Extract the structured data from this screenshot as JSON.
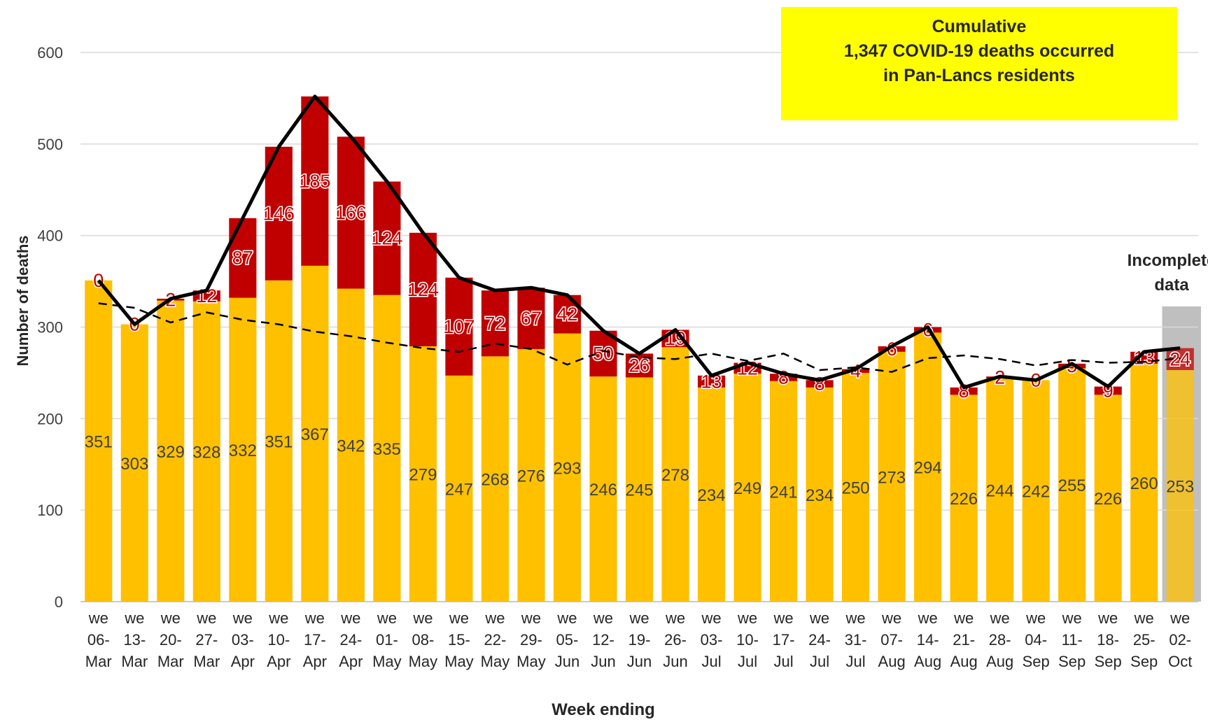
{
  "chart_data": {
    "type": "stacked-bar",
    "ylabel": "Number of deaths",
    "xlabel": "Week ending",
    "categories": [
      "we 06-Mar",
      "we 13-Mar",
      "we 20-Mar",
      "we 27-Mar",
      "we 03-Apr",
      "we 10-Apr",
      "we 17-Apr",
      "we 24-Apr",
      "we 01-May",
      "we 08-May",
      "we 15-May",
      "we 22-May",
      "we 29-May",
      "we 05-Jun",
      "we 12-Jun",
      "we 19-Jun",
      "we 26-Jun",
      "we 03-Jul",
      "we 10-Jul",
      "we 17-Jul",
      "we 24-Jul",
      "we 31-Jul",
      "we 07-Aug",
      "we 14-Aug",
      "we 21-Aug",
      "we 28-Aug",
      "we 04-Sep",
      "we 11-Sep",
      "we 18-Sep",
      "we 25-Sep",
      "we 02-Oct"
    ],
    "series": [
      {
        "color": "#ffc000",
        "label_color": "#404040",
        "values": [
          351,
          303,
          329,
          328,
          332,
          351,
          367,
          342,
          335,
          279,
          247,
          268,
          276,
          293,
          246,
          245,
          278,
          234,
          249,
          241,
          234,
          250,
          273,
          294,
          226,
          244,
          242,
          255,
          226,
          260,
          253
        ]
      },
      {
        "color": "#c00000",
        "label_color": "#c00000",
        "values": [
          0,
          0,
          2,
          12,
          87,
          146,
          185,
          166,
          124,
          124,
          107,
          72,
          67,
          42,
          50,
          26,
          19,
          13,
          12,
          8,
          8,
          4,
          6,
          6,
          8,
          2,
          0,
          5,
          9,
          13,
          24
        ]
      }
    ],
    "total_line_color": "#000000",
    "lines": [
      {
        "color": "#000000",
        "dashed": true,
        "values": [
          326,
          321,
          305,
          316,
          308,
          303,
          295,
          290,
          283,
          277,
          273,
          282,
          276,
          259,
          274,
          267,
          265,
          271,
          263,
          271,
          253,
          256,
          251,
          266,
          269,
          265,
          258,
          264,
          261,
          262,
          266
        ]
      }
    ],
    "ylim": [
      0,
      600
    ],
    "yticks": [
      0,
      100,
      200,
      300,
      400,
      500,
      600
    ],
    "grid": true,
    "annotations": {
      "box": [
        "Cumulative",
        "1,347 COVID-19 deaths occurred",
        "in Pan-Lancs residents"
      ],
      "box_color": "#ffff00",
      "incomplete": [
        "Incomplete",
        "data"
      ],
      "incomplete_shade": "#bfbfbf"
    }
  }
}
